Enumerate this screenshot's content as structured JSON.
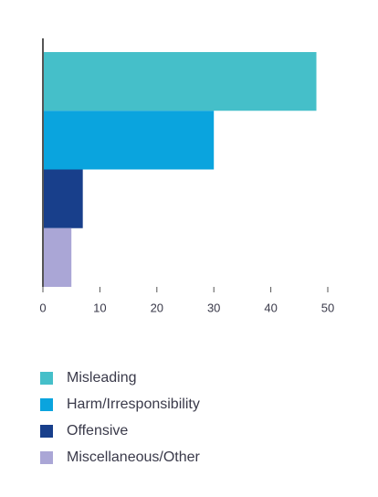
{
  "chart_data": {
    "type": "bar",
    "orientation": "horizontal",
    "categories": [
      "Misleading",
      "Harm/Irresponsibility",
      "Offensive",
      "Miscellaneous/Other"
    ],
    "values": [
      48,
      30,
      7,
      5
    ],
    "colors": [
      "#45bfc9",
      "#0aa4de",
      "#183f8b",
      "#aaa6d6"
    ],
    "xlim": [
      0,
      50
    ],
    "xticks": [
      0,
      10,
      20,
      30,
      40,
      50
    ],
    "legend": "bottom"
  }
}
